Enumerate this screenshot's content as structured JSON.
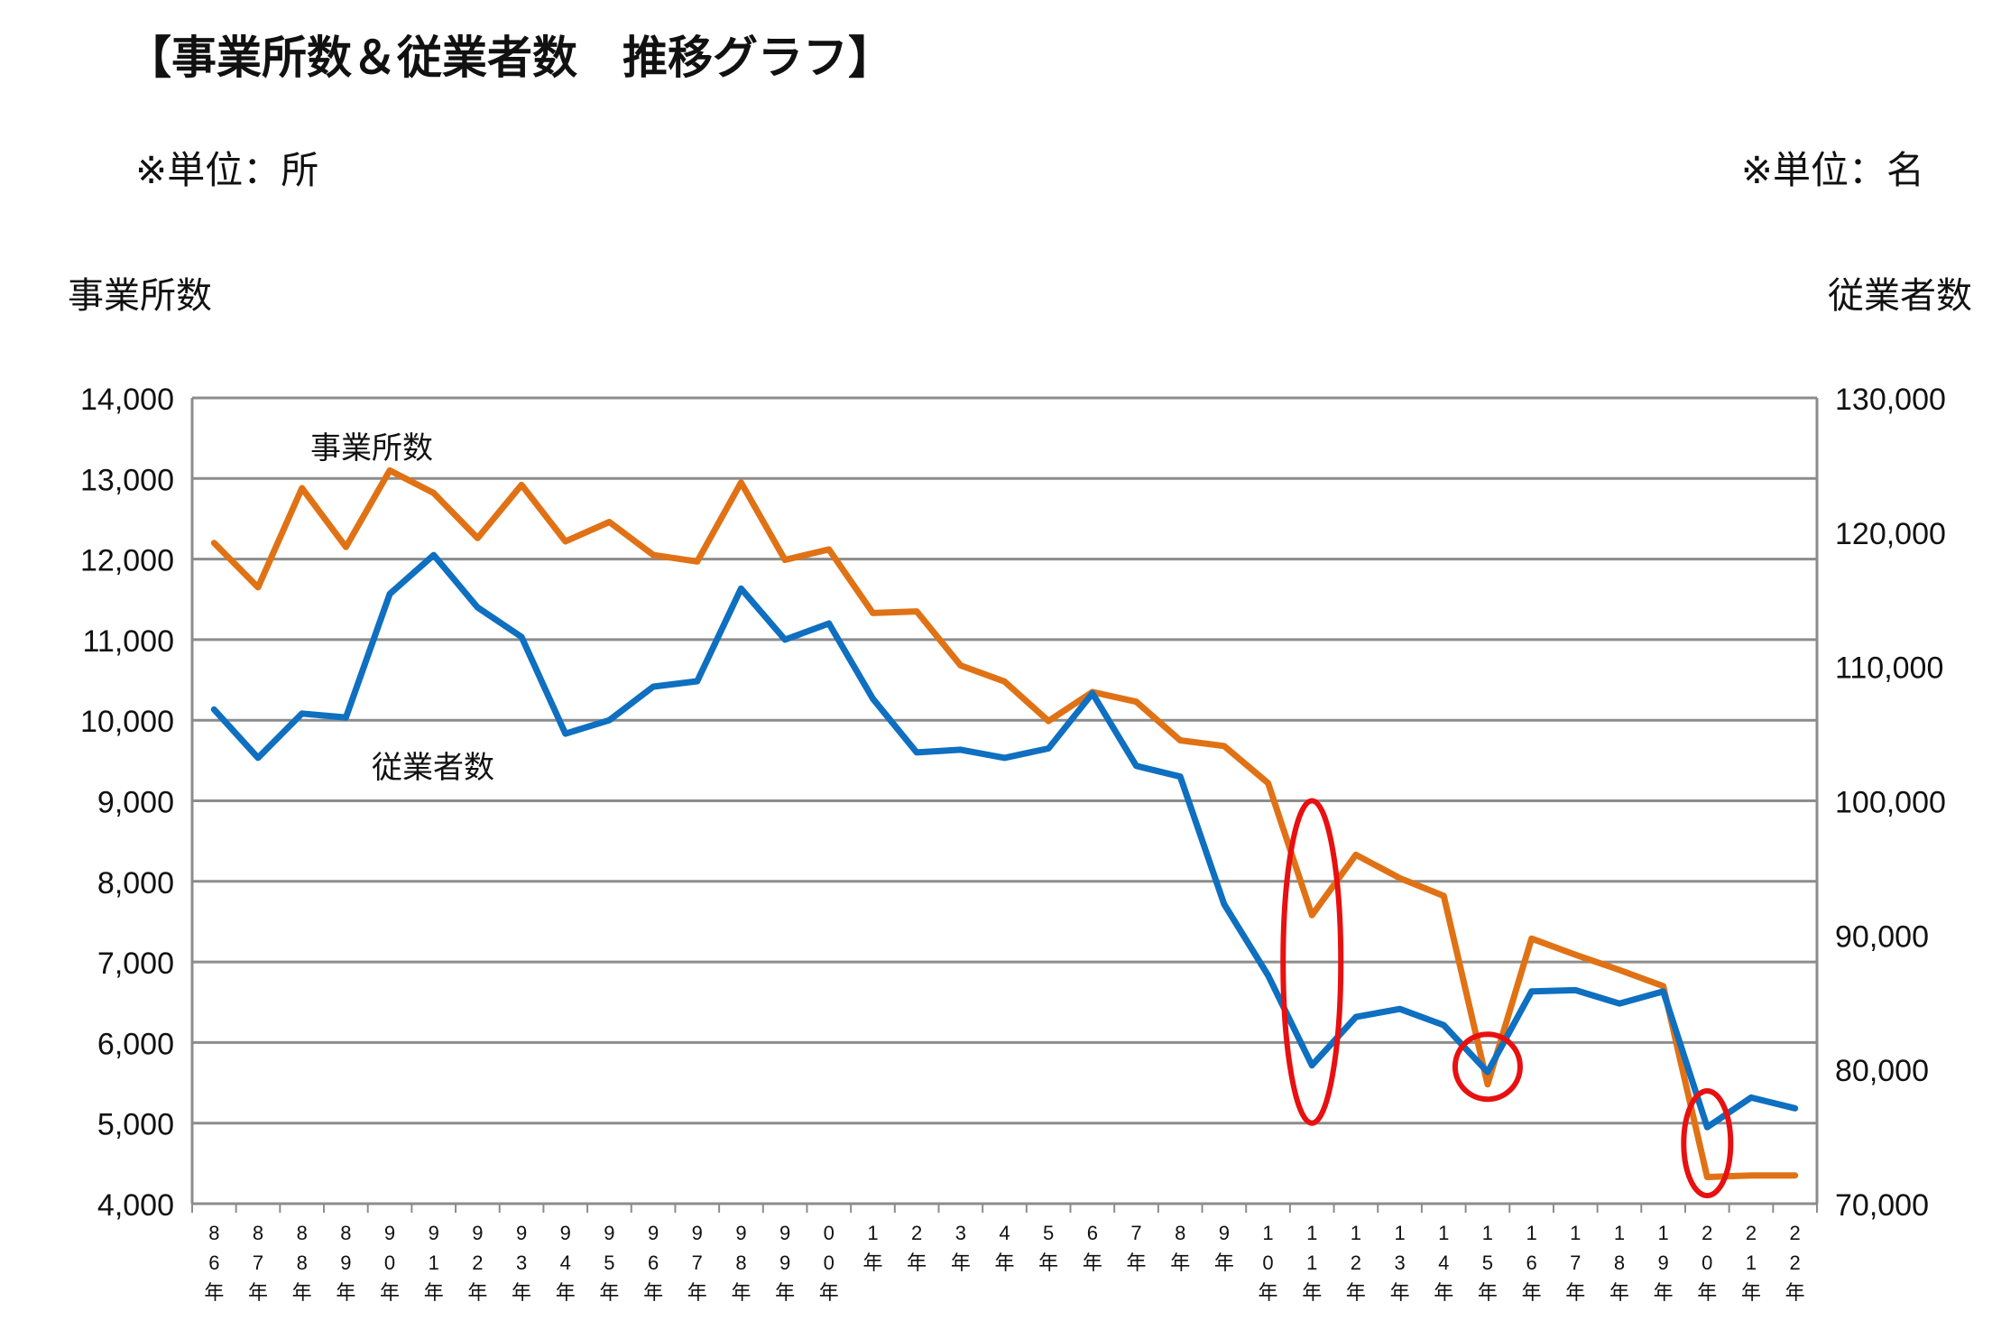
{
  "title": "【事業所数＆従業者数　推移グラフ】",
  "unit_left": "※単位：所",
  "unit_right": "※単位：名",
  "axis_title_left": "事業所数",
  "axis_title_right": "従業者数",
  "chart_data": {
    "type": "line",
    "categories": [
      [
        "8",
        "6",
        "年"
      ],
      [
        "8",
        "7",
        "年"
      ],
      [
        "8",
        "8",
        "年"
      ],
      [
        "8",
        "9",
        "年"
      ],
      [
        "9",
        "0",
        "年"
      ],
      [
        "9",
        "1",
        "年"
      ],
      [
        "9",
        "2",
        "年"
      ],
      [
        "9",
        "3",
        "年"
      ],
      [
        "9",
        "4",
        "年"
      ],
      [
        "9",
        "5",
        "年"
      ],
      [
        "9",
        "6",
        "年"
      ],
      [
        "9",
        "7",
        "年"
      ],
      [
        "9",
        "8",
        "年"
      ],
      [
        "9",
        "9",
        "年"
      ],
      [
        "0",
        "0",
        "年"
      ],
      [
        "1",
        "年"
      ],
      [
        "2",
        "年"
      ],
      [
        "3",
        "年"
      ],
      [
        "4",
        "年"
      ],
      [
        "5",
        "年"
      ],
      [
        "6",
        "年"
      ],
      [
        "7",
        "年"
      ],
      [
        "8",
        "年"
      ],
      [
        "9",
        "年"
      ],
      [
        "1",
        "0",
        "年"
      ],
      [
        "1",
        "1",
        "年"
      ],
      [
        "1",
        "2",
        "年"
      ],
      [
        "1",
        "3",
        "年"
      ],
      [
        "1",
        "4",
        "年"
      ],
      [
        "1",
        "5",
        "年"
      ],
      [
        "1",
        "6",
        "年"
      ],
      [
        "1",
        "7",
        "年"
      ],
      [
        "1",
        "8",
        "年"
      ],
      [
        "1",
        "9",
        "年"
      ],
      [
        "2",
        "0",
        "年"
      ],
      [
        "2",
        "1",
        "年"
      ],
      [
        "2",
        "2",
        "年"
      ]
    ],
    "left_axis": {
      "min": 4000,
      "max": 14000,
      "ticks": [
        "4,000",
        "5,000",
        "6,000",
        "7,000",
        "8,000",
        "9,000",
        "10,000",
        "11,000",
        "12,000",
        "13,000",
        "14,000"
      ]
    },
    "right_axis": {
      "min": 70000,
      "max": 130000,
      "ticks": [
        "70,000",
        "80,000",
        "90,000",
        "100,000",
        "110,000",
        "120,000",
        "130,000"
      ]
    },
    "grid": true,
    "series": [
      {
        "name": "事業所数",
        "axis": "left",
        "color": "#E07215",
        "values": [
          12200,
          11650,
          12880,
          12150,
          13100,
          12820,
          12260,
          12920,
          12220,
          12460,
          12050,
          11970,
          12950,
          11990,
          12120,
          11330,
          11350,
          10680,
          10480,
          9990,
          10350,
          10230,
          9750,
          9680,
          9220,
          7580,
          8330,
          8040,
          7820,
          5480,
          7290,
          7090,
          6900,
          6700,
          4330,
          4350,
          4350
        ]
      },
      {
        "name": "従業者数",
        "axis": "right",
        "color": "#0F6FC0",
        "values": [
          106800,
          103200,
          106500,
          106200,
          115400,
          118300,
          114400,
          112200,
          105000,
          106000,
          108500,
          108900,
          115800,
          112000,
          113200,
          107600,
          103600,
          103800,
          103200,
          103900,
          108000,
          102600,
          101800,
          92300,
          87000,
          80300,
          83900,
          84500,
          83300,
          79800,
          85800,
          85900,
          84900,
          85800,
          75700,
          77900,
          77100
        ]
      }
    ],
    "series_labels": [
      "事業所数",
      "従業者数"
    ],
    "annotations": [
      {
        "shape": "ellipse",
        "color": "#E81010",
        "category_index": 25,
        "y_low": 5000,
        "y_high": 9000
      },
      {
        "shape": "circle",
        "color": "#E81010",
        "category_index": 29,
        "y_low": 5300,
        "y_high": 6100
      },
      {
        "shape": "ellipse",
        "color": "#E81010",
        "category_index": 34,
        "y_low": 4100,
        "y_high": 5400
      }
    ]
  }
}
